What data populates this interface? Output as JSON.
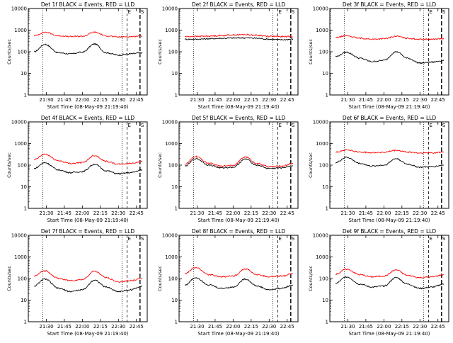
{
  "figure": {
    "ylabel": "Counts/sec",
    "xlabel": "Start Time (08-May-09 21:19:40)",
    "marker_E": "E",
    "marker_S": "S"
  },
  "chart_data": [
    {
      "type": "line",
      "title": "Det 1f  BLACK = Events, RED = LLD",
      "ylim": [
        1,
        10000
      ],
      "log_y": true,
      "ytick_labels": [
        "1",
        "10",
        "100",
        "1000",
        "10000"
      ],
      "xtick_labels": [
        "21:30",
        "21:45",
        "22:00",
        "22:15",
        "22:30",
        "22:45"
      ],
      "series": [
        {
          "name": "Events",
          "color": "#000000",
          "x_min": [
            21.33,
            21.48,
            21.67,
            21.83,
            22.0,
            22.17,
            22.33,
            22.5,
            22.67,
            22.83
          ],
          "values": [
            100,
            220,
            90,
            80,
            95,
            230,
            90,
            70,
            80,
            90
          ]
        },
        {
          "name": "LLD",
          "color": "#ff0000",
          "x_min": [
            21.33,
            21.48,
            21.67,
            21.83,
            22.0,
            22.17,
            22.33,
            22.5,
            22.67,
            22.83
          ],
          "values": [
            550,
            800,
            550,
            500,
            520,
            800,
            550,
            480,
            500,
            550
          ]
        }
      ]
    },
    {
      "type": "line",
      "title": "Det 2f  BLACK = Events, RED = LLD",
      "ylim": [
        1,
        10000
      ],
      "log_y": true,
      "ytick_labels": [
        "1",
        "10",
        "100",
        "1000",
        "10000"
      ],
      "xtick_labels": [
        "21:30",
        "21:45",
        "22:00",
        "22:15",
        "22:30",
        "22:45"
      ],
      "series": [
        {
          "name": "Events",
          "color": "#000000",
          "x_min": [
            21.33,
            21.48,
            21.67,
            21.83,
            22.0,
            22.17,
            22.33,
            22.5,
            22.67,
            22.83
          ],
          "values": [
            380,
            380,
            400,
            420,
            430,
            440,
            420,
            380,
            360,
            380
          ]
        },
        {
          "name": "LLD",
          "color": "#ff0000",
          "x_min": [
            21.33,
            21.48,
            21.67,
            21.83,
            22.0,
            22.17,
            22.33,
            22.5,
            22.67,
            22.83
          ],
          "values": [
            500,
            510,
            530,
            560,
            600,
            620,
            580,
            520,
            500,
            510
          ]
        }
      ]
    },
    {
      "type": "line",
      "title": "Det 3f  BLACK = Events, RED = LLD",
      "ylim": [
        1,
        10000
      ],
      "log_y": true,
      "ytick_labels": [
        "1",
        "10",
        "100",
        "1000",
        "10000"
      ],
      "xtick_labels": [
        "21:30",
        "21:45",
        "22:00",
        "22:15",
        "22:30",
        "22:45"
      ],
      "series": [
        {
          "name": "Events",
          "color": "#000000",
          "x_min": [
            21.33,
            21.48,
            21.67,
            21.83,
            22.0,
            22.17,
            22.33,
            22.5,
            22.67,
            22.83
          ],
          "values": [
            60,
            95,
            50,
            35,
            40,
            100,
            50,
            30,
            33,
            40
          ]
        },
        {
          "name": "LLD",
          "color": "#ff0000",
          "x_min": [
            21.33,
            21.48,
            21.67,
            21.83,
            22.0,
            22.17,
            22.33,
            22.5,
            22.67,
            22.83
          ],
          "values": [
            450,
            550,
            420,
            380,
            400,
            520,
            420,
            380,
            380,
            400
          ]
        }
      ]
    },
    {
      "type": "line",
      "title": "Det 4f  BLACK = Events, RED = LLD",
      "ylim": [
        1,
        10000
      ],
      "log_y": true,
      "ytick_labels": [
        "1",
        "10",
        "100",
        "1000",
        "10000"
      ],
      "xtick_labels": [
        "21:30",
        "21:45",
        "22:00",
        "22:15",
        "22:30",
        "22:45"
      ],
      "series": [
        {
          "name": "Events",
          "color": "#000000",
          "x_min": [
            21.33,
            21.48,
            21.67,
            21.83,
            22.0,
            22.17,
            22.33,
            22.5,
            22.67,
            22.83
          ],
          "values": [
            70,
            130,
            60,
            45,
            50,
            110,
            55,
            40,
            45,
            60
          ]
        },
        {
          "name": "LLD",
          "color": "#ff0000",
          "x_min": [
            21.33,
            21.48,
            21.67,
            21.83,
            22.0,
            22.17,
            22.33,
            22.5,
            22.67,
            22.83
          ],
          "values": [
            180,
            320,
            160,
            120,
            130,
            280,
            150,
            110,
            120,
            150
          ]
        }
      ]
    },
    {
      "type": "line",
      "title": "Det 5f  BLACK = Events, RED = LLD",
      "ylim": [
        1,
        10000
      ],
      "log_y": true,
      "ytick_labels": [
        "1",
        "10",
        "100",
        "1000",
        "10000"
      ],
      "xtick_labels": [
        "21:30",
        "21:45",
        "22:00",
        "22:15",
        "22:30",
        "22:45"
      ],
      "series": [
        {
          "name": "Events",
          "color": "#000000",
          "x_min": [
            21.33,
            21.48,
            21.67,
            21.83,
            22.0,
            22.17,
            22.33,
            22.5,
            22.67,
            22.83
          ],
          "values": [
            90,
            200,
            100,
            75,
            80,
            190,
            100,
            70,
            75,
            95
          ]
        },
        {
          "name": "LLD",
          "color": "#ff0000",
          "x_min": [
            21.33,
            21.48,
            21.67,
            21.83,
            22.0,
            22.17,
            22.33,
            22.5,
            22.67,
            22.83
          ],
          "values": [
            110,
            250,
            120,
            90,
            100,
            240,
            120,
            85,
            90,
            120
          ]
        }
      ]
    },
    {
      "type": "line",
      "title": "Det 6f  BLACK = Events, RED = LLD",
      "ylim": [
        1,
        10000
      ],
      "log_y": true,
      "ytick_labels": [
        "1",
        "10",
        "100",
        "1000",
        "10000"
      ],
      "xtick_labels": [
        "21:30",
        "21:45",
        "22:00",
        "22:15",
        "22:30",
        "22:45"
      ],
      "series": [
        {
          "name": "Events",
          "color": "#000000",
          "x_min": [
            21.33,
            21.48,
            21.67,
            21.83,
            22.0,
            22.17,
            22.33,
            22.5,
            22.67,
            22.83
          ],
          "values": [
            130,
            230,
            120,
            90,
            100,
            200,
            110,
            80,
            85,
            100
          ]
        },
        {
          "name": "LLD",
          "color": "#ff0000",
          "x_min": [
            21.33,
            21.48,
            21.67,
            21.83,
            22.0,
            22.17,
            22.33,
            22.5,
            22.67,
            22.83
          ],
          "values": [
            400,
            500,
            400,
            380,
            390,
            480,
            400,
            360,
            370,
            400
          ]
        }
      ]
    },
    {
      "type": "line",
      "title": "Det 7f  BLACK = Events, RED = LLD",
      "ylim": [
        1,
        10000
      ],
      "log_y": true,
      "ytick_labels": [
        "1",
        "10",
        "100",
        "1000",
        "10000"
      ],
      "xtick_labels": [
        "21:30",
        "21:45",
        "22:00",
        "22:15",
        "22:30",
        "22:45"
      ],
      "series": [
        {
          "name": "Events",
          "color": "#000000",
          "x_min": [
            21.33,
            21.48,
            21.67,
            21.83,
            22.0,
            22.17,
            22.33,
            22.5,
            22.67,
            22.83
          ],
          "values": [
            45,
            95,
            35,
            25,
            30,
            85,
            40,
            25,
            30,
            45
          ]
        },
        {
          "name": "LLD",
          "color": "#ff0000",
          "x_min": [
            21.33,
            21.48,
            21.67,
            21.83,
            22.0,
            22.17,
            22.33,
            22.5,
            22.67,
            22.83
          ],
          "values": [
            130,
            230,
            100,
            80,
            90,
            220,
            110,
            70,
            80,
            100
          ]
        }
      ]
    },
    {
      "type": "line",
      "title": "Det 8f  BLACK = Events, RED = LLD",
      "ylim": [
        1,
        10000
      ],
      "log_y": true,
      "ytick_labels": [
        "1",
        "10",
        "100",
        "1000",
        "10000"
      ],
      "xtick_labels": [
        "21:30",
        "21:45",
        "22:00",
        "22:15",
        "22:30",
        "22:45"
      ],
      "series": [
        {
          "name": "Events",
          "color": "#000000",
          "x_min": [
            21.33,
            21.48,
            21.67,
            21.83,
            22.0,
            22.17,
            22.33,
            22.5,
            22.67,
            22.83
          ],
          "values": [
            50,
            110,
            50,
            35,
            40,
            95,
            45,
            30,
            35,
            50
          ]
        },
        {
          "name": "LLD",
          "color": "#ff0000",
          "x_min": [
            21.33,
            21.48,
            21.67,
            21.83,
            22.0,
            22.17,
            22.33,
            22.5,
            22.67,
            22.83
          ],
          "values": [
            170,
            320,
            150,
            120,
            130,
            280,
            150,
            120,
            130,
            170
          ]
        }
      ]
    },
    {
      "type": "line",
      "title": "Det 9f  BLACK = Events, RED = LLD",
      "ylim": [
        1,
        10000
      ],
      "log_y": true,
      "ytick_labels": [
        "1",
        "10",
        "100",
        "1000",
        "10000"
      ],
      "xtick_labels": [
        "21:30",
        "21:45",
        "22:00",
        "22:15",
        "22:30",
        "22:45"
      ],
      "series": [
        {
          "name": "Events",
          "color": "#000000",
          "x_min": [
            21.33,
            21.48,
            21.67,
            21.83,
            22.0,
            22.17,
            22.33,
            22.5,
            22.67,
            22.83
          ],
          "values": [
            60,
            120,
            55,
            40,
            45,
            110,
            55,
            35,
            40,
            55
          ]
        },
        {
          "name": "LLD",
          "color": "#ff0000",
          "x_min": [
            21.33,
            21.48,
            21.67,
            21.83,
            22.0,
            22.17,
            22.33,
            22.5,
            22.67,
            22.83
          ],
          "values": [
            160,
            270,
            150,
            120,
            130,
            250,
            140,
            110,
            120,
            150
          ]
        }
      ]
    }
  ]
}
